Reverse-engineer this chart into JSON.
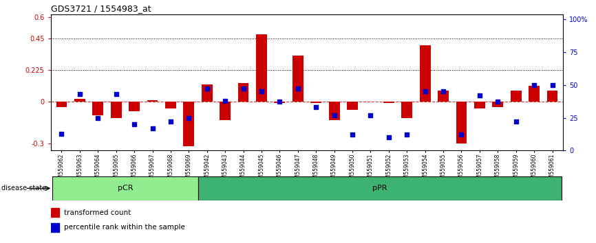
{
  "title": "GDS3721 / 1554983_at",
  "samples": [
    "GSM559062",
    "GSM559063",
    "GSM559064",
    "GSM559065",
    "GSM559066",
    "GSM559067",
    "GSM559068",
    "GSM559069",
    "GSM559042",
    "GSM559043",
    "GSM559044",
    "GSM559045",
    "GSM559046",
    "GSM559047",
    "GSM559048",
    "GSM559049",
    "GSM559050",
    "GSM559051",
    "GSM559052",
    "GSM559053",
    "GSM559054",
    "GSM559055",
    "GSM559056",
    "GSM559057",
    "GSM559058",
    "GSM559059",
    "GSM559060",
    "GSM559061"
  ],
  "transformed_count": [
    -0.04,
    0.02,
    -0.1,
    -0.12,
    -0.07,
    0.01,
    -0.05,
    -0.32,
    0.12,
    -0.13,
    0.13,
    0.48,
    -0.01,
    0.33,
    -0.01,
    -0.13,
    -0.06,
    0.0,
    -0.01,
    -0.12,
    0.4,
    0.08,
    -0.3,
    -0.05,
    -0.04,
    0.08,
    0.11,
    0.08
  ],
  "percentile_rank": [
    0.13,
    0.43,
    0.25,
    0.43,
    0.2,
    0.17,
    0.22,
    0.25,
    0.47,
    0.38,
    0.47,
    0.45,
    0.37,
    0.47,
    0.33,
    0.27,
    0.12,
    0.27,
    0.1,
    0.12,
    0.45,
    0.45,
    0.12,
    0.42,
    0.37,
    0.22,
    0.5,
    0.5
  ],
  "group_colors_light": "#90EE90",
  "group_colors_dark": "#3CB371",
  "bar_color": "#CC0000",
  "dot_color": "#0000CC",
  "ylim_left": [
    -0.35,
    0.62
  ],
  "yticks_left": [
    -0.3,
    0.0,
    0.225,
    0.45,
    0.6
  ],
  "ytick_labels_left": [
    "-0.3",
    "0",
    "0.225",
    "0.45",
    "0.6"
  ],
  "ylim_right": [
    0.0,
    1.033
  ],
  "yticks_right": [
    0.0,
    0.25,
    0.5,
    0.75,
    1.0
  ],
  "ytick_labels_right": [
    "0",
    "25",
    "50",
    "75",
    "100%"
  ],
  "legend_labels": [
    "transformed count",
    "percentile rank within the sample"
  ],
  "legend_colors": [
    "#CC0000",
    "#0000CC"
  ],
  "pcr_count": 8,
  "ppr_count": 20
}
